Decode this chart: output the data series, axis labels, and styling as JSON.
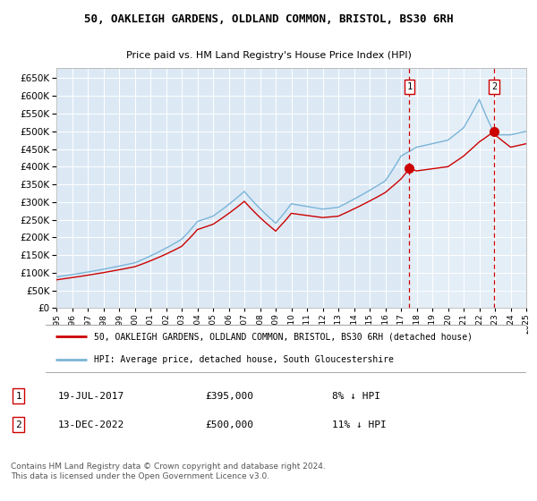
{
  "title": "50, OAKLEIGH GARDENS, OLDLAND COMMON, BRISTOL, BS30 6RH",
  "subtitle": "Price paid vs. HM Land Registry's House Price Index (HPI)",
  "ytick_values": [
    0,
    50000,
    100000,
    150000,
    200000,
    250000,
    300000,
    350000,
    400000,
    450000,
    500000,
    550000,
    600000,
    650000
  ],
  "ylim": [
    0,
    680000
  ],
  "hpi_color": "#7ab4d8",
  "price_color": "#cc0000",
  "vline_color": "#cc0000",
  "background_color": "#dce9f5",
  "highlight_color": "#ccdff0",
  "grid_color": "#ffffff",
  "legend_label_price": "50, OAKLEIGH GARDENS, OLDLAND COMMON, BRISTOL, BS30 6RH (detached house)",
  "legend_label_hpi": "HPI: Average price, detached house, South Gloucestershire",
  "sale1_date": "19-JUL-2017",
  "sale1_x": 2017.54,
  "sale1_price": 395000,
  "sale1_label": "8% ↓ HPI",
  "sale2_date": "13-DEC-2022",
  "sale2_x": 2022.95,
  "sale2_price": 500000,
  "sale2_label": "11% ↓ HPI",
  "footnote": "Contains HM Land Registry data © Crown copyright and database right 2024.\nThis data is licensed under the Open Government Licence v3.0.",
  "xmin": 1995,
  "xmax": 2025
}
